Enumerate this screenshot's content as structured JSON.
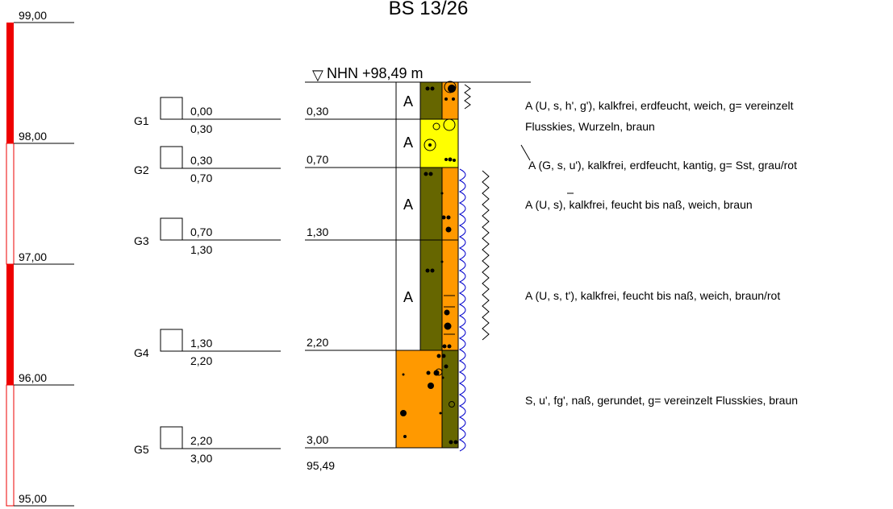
{
  "title": "BS 13/26",
  "ground_level": {
    "symbol": "▽",
    "label": "NHN +98,49 m"
  },
  "elevation_scale": {
    "ticks": [
      "99,00",
      "98,00",
      "97,00",
      "96,00",
      "95,00"
    ]
  },
  "samples": [
    {
      "id": "G1",
      "top": "0,00",
      "bottom": "0,30"
    },
    {
      "id": "G2",
      "top": "0,30",
      "bottom": "0,70"
    },
    {
      "id": "G3",
      "top": "0,70",
      "bottom": "1,30"
    },
    {
      "id": "G4",
      "top": "1,30",
      "bottom": "2,20"
    },
    {
      "id": "G5",
      "top": "2,20",
      "bottom": "3,00"
    }
  ],
  "layer_depths": [
    "0,30",
    "0,70",
    "1,30",
    "2,20",
    "3,00"
  ],
  "end_elevation": "95,49",
  "layers": [
    {
      "code": "A",
      "description": "A (U, s, h', g'), kalkfrei, erdfeucht, weich, g= vereinzelt",
      "description_2": "Flusskies, Wurzeln, braun"
    },
    {
      "code": "A",
      "description": "A (G, s, u'), kalkfrei, erdfeucht, kantig, g= Sst, grau/rot"
    },
    {
      "code": "A",
      "description": "A (U, s), kalkfrei, feucht bis naß, weich, braun"
    },
    {
      "code": "A",
      "description": "A (U, s, t'), kalkfrei, feucht bis naß, weich, braun/rot"
    },
    {
      "code": "",
      "description": "S, u', fg', naß, gerundet, g= vereinzelt Flusskies, braun"
    }
  ],
  "colors": {
    "red": "#ee0000",
    "olive": "#666600",
    "orange": "#ff9900",
    "yellow": "#ffff00",
    "water": "#0000cc"
  }
}
